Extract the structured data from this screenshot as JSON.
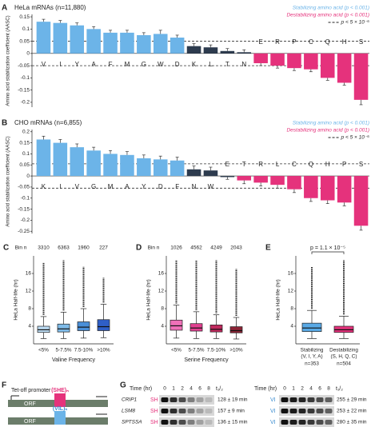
{
  "chart_data": [
    {
      "type": "bar",
      "panel": "A",
      "title": "HeLa mRNAs (n=11,880)",
      "y_label": "Amino acid stabilization coefficient (AASC)",
      "categories": [
        "V",
        "I",
        "Y",
        "A",
        "F",
        "M",
        "G",
        "W",
        "D",
        "K",
        "L",
        "T",
        "N",
        "E",
        "R",
        "P",
        "C",
        "Q",
        "H",
        "S"
      ],
      "values": [
        0.13,
        0.125,
        0.115,
        0.1,
        0.085,
        0.085,
        0.075,
        0.08,
        0.065,
        0.03,
        0.025,
        0.01,
        0.005,
        -0.04,
        -0.05,
        -0.06,
        -0.065,
        -0.1,
        -0.12,
        -0.19
      ],
      "errors": [
        0.01,
        0.01,
        0.01,
        0.01,
        0.01,
        0.01,
        0.01,
        0.015,
        0.01,
        0.01,
        0.01,
        0.01,
        0.01,
        0.01,
        0.01,
        0.01,
        0.01,
        0.01,
        0.01,
        0.02
      ],
      "colors": [
        "#6cb4e8",
        "#6cb4e8",
        "#6cb4e8",
        "#6cb4e8",
        "#6cb4e8",
        "#6cb4e8",
        "#6cb4e8",
        "#6cb4e8",
        "#6cb4e8",
        "#2d3b4e",
        "#2d3b4e",
        "#2d3b4e",
        "#2d3b4e",
        "#e5327c",
        "#e5327c",
        "#e5327c",
        "#e5327c",
        "#e5327c",
        "#e5327c",
        "#e5327c"
      ],
      "ylim": [
        -0.22,
        0.16
      ],
      "yticks": [
        0.15,
        0.1,
        0.05,
        0,
        -0.05,
        -0.1,
        -0.15,
        -0.2
      ],
      "threshold_lines": [
        0.05,
        -0.05
      ],
      "legend": [
        {
          "label": "Stabilizing amino acid (p < 0.001)",
          "color": "#6cb4e8"
        },
        {
          "label": "Destabilizing amino acid (p < 0.001)",
          "color": "#e5327c"
        },
        {
          "label": "p < 5 × 10⁻⁵",
          "color": "#222222"
        }
      ]
    },
    {
      "type": "bar",
      "panel": "B",
      "title": "CHO mRNAs (n=6,855)",
      "y_label": "Amino acid stabilization coefficient (AASC)",
      "categories": [
        "K",
        "I",
        "V",
        "G",
        "M",
        "A",
        "Y",
        "D",
        "F",
        "N",
        "W",
        "E",
        "T",
        "R",
        "L",
        "C",
        "Q",
        "H",
        "P",
        "S"
      ],
      "values": [
        0.165,
        0.15,
        0.13,
        0.115,
        0.1,
        0.095,
        0.08,
        0.075,
        0.07,
        0.03,
        0.025,
        -0.005,
        -0.02,
        -0.03,
        -0.04,
        -0.06,
        -0.1,
        -0.11,
        -0.12,
        -0.225
      ],
      "errors": [
        0.015,
        0.015,
        0.015,
        0.015,
        0.015,
        0.015,
        0.015,
        0.015,
        0.015,
        0.015,
        0.015,
        0.01,
        0.015,
        0.015,
        0.015,
        0.015,
        0.015,
        0.015,
        0.015,
        0.02
      ],
      "colors": [
        "#6cb4e8",
        "#6cb4e8",
        "#6cb4e8",
        "#6cb4e8",
        "#6cb4e8",
        "#6cb4e8",
        "#6cb4e8",
        "#6cb4e8",
        "#6cb4e8",
        "#2d3b4e",
        "#2d3b4e",
        "#2d3b4e",
        "#e5327c",
        "#e5327c",
        "#e5327c",
        "#e5327c",
        "#e5327c",
        "#e5327c",
        "#e5327c",
        "#e5327c"
      ],
      "ylim": [
        -0.26,
        0.21
      ],
      "yticks": [
        0.2,
        0.15,
        0.1,
        0.05,
        0,
        -0.05,
        -0.1,
        -0.15,
        -0.2,
        -0.25
      ],
      "threshold_lines": [
        0.055,
        -0.055
      ],
      "legend": [
        {
          "label": "Stabilizing amino acid (p < 0.001)",
          "color": "#6cb4e8"
        },
        {
          "label": "Destabilizing amino acid (p < 0.001)",
          "color": "#e5327c"
        },
        {
          "label": "p < 5 × 10⁻⁵",
          "color": "#222222"
        }
      ]
    },
    {
      "type": "box",
      "panel": "C",
      "y_label": "HeLa Half-life (hr)",
      "x_label": "Valine Frequency",
      "bin_header": "Bin n",
      "bin_n": [
        3310,
        6363,
        1960,
        227
      ],
      "categories": [
        "<5%",
        "5-7.5%",
        "7.5-10%",
        ">10%"
      ],
      "median": [
        3.2,
        3.4,
        3.8,
        3.9
      ],
      "q1": [
        2.6,
        2.7,
        3.0,
        3.0
      ],
      "q3": [
        4.0,
        4.5,
        5.0,
        5.5
      ],
      "whisker_low": [
        1.2,
        1.2,
        1.3,
        1.4
      ],
      "whisker_high": [
        6.2,
        7.2,
        8.0,
        9.0
      ],
      "outlier_max": [
        18.5,
        19,
        17.5,
        15
      ],
      "colors": [
        "#bcdcf3",
        "#7fbbe8",
        "#4a8fd8",
        "#2f5fc7"
      ],
      "ylim": [
        0,
        20
      ],
      "yticks": [
        4,
        8,
        12,
        16
      ]
    },
    {
      "type": "box",
      "panel": "D",
      "y_label": "HeLa Half-life (hr)",
      "x_label": "Serine Frequency",
      "bin_header": "Bin n",
      "bin_n": [
        1026,
        4562,
        4249,
        2043
      ],
      "categories": [
        "<5%",
        "5-7.5%",
        "7.5-10%",
        ">10%"
      ],
      "median": [
        4.1,
        3.6,
        3.3,
        3.0
      ],
      "q1": [
        3.1,
        2.9,
        2.7,
        2.5
      ],
      "q3": [
        5.4,
        4.6,
        4.3,
        3.9
      ],
      "whisker_low": [
        1.3,
        1.2,
        1.2,
        1.1
      ],
      "whisker_high": [
        8.8,
        7.3,
        6.6,
        6.0
      ],
      "outlier_max": [
        19,
        19,
        19,
        17
      ],
      "colors": [
        "#f070b8",
        "#e0408f",
        "#c02a5e",
        "#8c2436"
      ],
      "ylim": [
        0,
        20
      ],
      "yticks": [
        4,
        8,
        12,
        16
      ]
    },
    {
      "type": "box",
      "panel": "E",
      "y_label": "HeLa Half-life (hr)",
      "p_label": "p = 1.1 × 10⁻⁵",
      "categories": [
        "Stabilizing",
        "Destabilizing"
      ],
      "category_details": [
        "(V, I, Y, A)",
        "(S, H, Q, C)"
      ],
      "n_labels": [
        "n=353",
        "n=504"
      ],
      "median": [
        3.6,
        3.2
      ],
      "q1": [
        2.8,
        2.6
      ],
      "q3": [
        4.7,
        4.0
      ],
      "whisker_low": [
        1.2,
        1.2
      ],
      "whisker_high": [
        7.6,
        6.3
      ],
      "outlier_max": [
        17.5,
        19
      ],
      "colors": [
        "#5aaae6",
        "#e5327c"
      ],
      "ylim": [
        0,
        20
      ],
      "yticks": [
        4,
        8,
        12,
        16
      ]
    }
  ],
  "diagram": {
    "panel": "F",
    "promoter_label": "Tet-off promoter",
    "constructs": [
      {
        "insert": "(SHE)ₙ",
        "orf": "ORF"
      },
      {
        "insert": "(VIL)ₙ",
        "orf": "ORF"
      }
    ]
  },
  "blot": {
    "panel": "G",
    "time_label": "Time (hr)",
    "times": [
      0,
      1,
      2,
      4,
      6,
      8
    ],
    "half_life_label": "t₁/₂",
    "genes": [
      "CRIP1",
      "LSM8",
      "SPTSSA"
    ],
    "left_tag": "SH",
    "right_tag": "VI",
    "left_half_lives": [
      "128 ± 19 min",
      "157 ± 9 min",
      "136 ± 15 min"
    ],
    "right_half_lives": [
      "255 ± 29 min",
      "253 ± 22 min",
      "280 ± 35 min"
    ]
  }
}
